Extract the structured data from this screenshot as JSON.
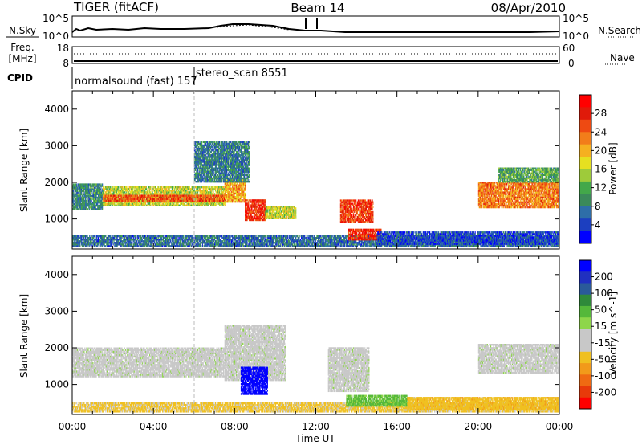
{
  "header": {
    "radar": "TIGER (fitACF)",
    "beam": "Beam 14",
    "date": "08/Apr/2010"
  },
  "noise_panel": {
    "left_label": "N.Sky",
    "right_label": "N.Search",
    "left_ticks": [
      "10^5",
      "10^0"
    ],
    "right_ticks": [
      "10^5",
      "10^0"
    ]
  },
  "freq_panel": {
    "left_label_1": "Freq.",
    "left_label_2": "[MHz]",
    "right_label": "Nave",
    "left_ticks": [
      "18",
      "8"
    ],
    "right_ticks": [
      "60",
      "0"
    ]
  },
  "cpid_panel": {
    "label": "CPID",
    "segments": [
      {
        "text": "normalsound (fast) 157",
        "start_hour": 0,
        "end_hour": 6
      },
      {
        "text": "stereo_scan 8551",
        "start_hour": 6,
        "end_hour": 24
      }
    ]
  },
  "chart_data": [
    {
      "type": "heatmap",
      "title": "",
      "xlabel": "",
      "ylabel": "Slant Range [km]",
      "xlim": [
        0,
        24
      ],
      "ylim": [
        180,
        4500
      ],
      "yticks": [
        "1000",
        "2000",
        "3000",
        "4000"
      ],
      "colorbar": {
        "label": "Power [dB]",
        "ticks": [
          "4",
          "8",
          "12",
          "16",
          "20",
          "24",
          "28"
        ],
        "colors": [
          "#0000ff",
          "#1c3fc0",
          "#2e6ea8",
          "#3b8a5a",
          "#43a84a",
          "#9ecb3a",
          "#e6e020",
          "#f5b020",
          "#f27d1a",
          "#ee4a12",
          "#e01a0a",
          "#ff0000"
        ]
      },
      "bands": [
        {
          "h0": 0.0,
          "h1": 24.0,
          "r0": 240,
          "r1": 520,
          "power": 8
        },
        {
          "h0": 0.0,
          "h1": 1.5,
          "r0": 1250,
          "r1": 1950,
          "power": 10
        },
        {
          "h0": 1.5,
          "h1": 7.5,
          "r0": 1350,
          "r1": 1850,
          "power": 16
        },
        {
          "h0": 1.5,
          "h1": 7.5,
          "r0": 1480,
          "r1": 1650,
          "power": 24
        },
        {
          "h0": 7.5,
          "h1": 8.5,
          "r0": 1450,
          "r1": 2100,
          "power": 20
        },
        {
          "h0": 8.5,
          "h1": 9.5,
          "r0": 950,
          "r1": 1500,
          "power": 26
        },
        {
          "h0": 9.5,
          "h1": 11.0,
          "r0": 1000,
          "r1": 1350,
          "power": 16
        },
        {
          "h0": 6.0,
          "h1": 8.7,
          "r0": 2000,
          "r1": 3100,
          "power": 9
        },
        {
          "h0": 13.2,
          "h1": 14.8,
          "r0": 900,
          "r1": 1500,
          "power": 25
        },
        {
          "h0": 13.6,
          "h1": 15.2,
          "r0": 420,
          "r1": 720,
          "power": 26
        },
        {
          "h0": 15.0,
          "h1": 24.0,
          "r0": 300,
          "r1": 650,
          "power": 6
        },
        {
          "h0": 20.0,
          "h1": 24.0,
          "r0": 1300,
          "r1": 2000,
          "power": 22
        },
        {
          "h0": 21.0,
          "h1": 24.0,
          "r0": 2000,
          "r1": 2400,
          "power": 12
        }
      ]
    },
    {
      "type": "heatmap",
      "title": "",
      "xlabel": "Time UT",
      "ylabel": "Slant Range [km]",
      "xlim": [
        0,
        24
      ],
      "ylim": [
        180,
        4500
      ],
      "xticks": [
        "00:00",
        "04:00",
        "08:00",
        "12:00",
        "16:00",
        "20:00",
        "00:00"
      ],
      "yticks": [
        "1000",
        "2000",
        "3000",
        "4000"
      ],
      "colorbar": {
        "label": "Velocity [m s^-1]",
        "ticks": [
          "200",
          "100",
          "50",
          "15",
          "-15",
          "-50",
          "-100",
          "-200"
        ],
        "colors": [
          "#0000ff",
          "#2030c0",
          "#2a5a9a",
          "#2f8a3a",
          "#55b83a",
          "#8ed64a",
          "#c8c8c8",
          "#c8c8c8",
          "#f0c020",
          "#f29a1a",
          "#ef6a12",
          "#e83a0a",
          "#ff0000"
        ]
      },
      "bands": [
        {
          "h0": 0.0,
          "h1": 24.0,
          "r0": 240,
          "r1": 500,
          "velocity": -60
        },
        {
          "h0": 0.0,
          "h1": 7.5,
          "r0": 1200,
          "r1": 2000,
          "velocity": 0
        },
        {
          "h0": 7.5,
          "h1": 10.5,
          "r0": 1100,
          "r1": 2600,
          "velocity": 0
        },
        {
          "h0": 8.3,
          "h1": 9.6,
          "r0": 720,
          "r1": 1450,
          "velocity": 220
        },
        {
          "h0": 12.6,
          "h1": 14.6,
          "r0": 800,
          "r1": 2000,
          "velocity": 0
        },
        {
          "h0": 13.5,
          "h1": 16.5,
          "r0": 400,
          "r1": 700,
          "velocity": 60
        },
        {
          "h0": 16.5,
          "h1": 24.0,
          "r0": 300,
          "r1": 650,
          "velocity": -70
        },
        {
          "h0": 20.0,
          "h1": 24.0,
          "r0": 1300,
          "r1": 2100,
          "velocity": 0
        }
      ]
    }
  ]
}
